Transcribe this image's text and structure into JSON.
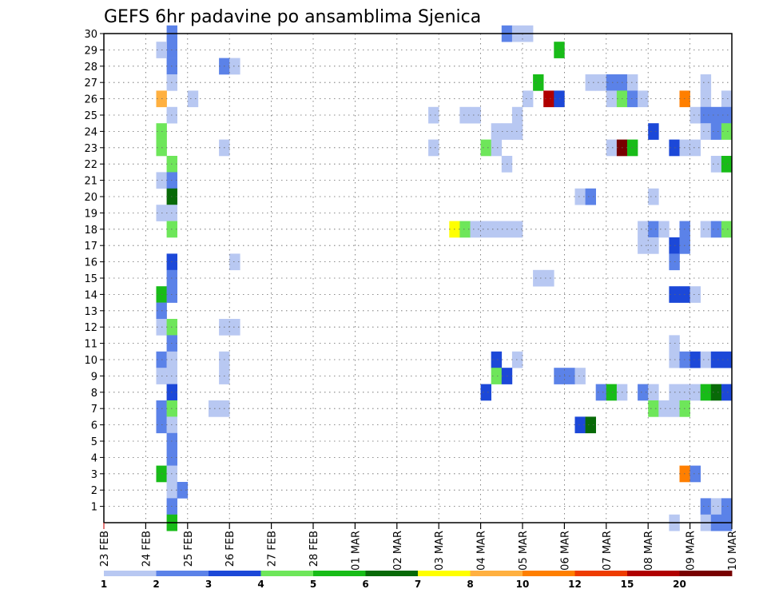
{
  "chart_data": {
    "type": "heatmap",
    "title": "GEFS 6hr padavine po ansamblima Sjenica",
    "xlabel": "",
    "ylabel": "",
    "x_ticks": [
      "23 FEB",
      "24 FEB",
      "25 FEB",
      "26 FEB",
      "27 FEB",
      "28 FEB",
      "01 MAR",
      "02 MAR",
      "03 MAR",
      "04 MAR",
      "05 MAR",
      "06 MAR",
      "07 MAR",
      "08 MAR",
      "09 MAR",
      "10 MAR"
    ],
    "y_ticks": [
      1,
      2,
      3,
      4,
      5,
      6,
      7,
      8,
      9,
      10,
      11,
      12,
      13,
      14,
      15,
      16,
      17,
      18,
      19,
      20,
      21,
      22,
      23,
      24,
      25,
      26,
      27,
      28,
      29,
      30
    ],
    "x_range": [
      0,
      60
    ],
    "y_range": [
      0,
      30
    ],
    "grid": true,
    "colorbar": {
      "levels": [
        "1",
        "2",
        "3",
        "4",
        "5",
        "6",
        "7",
        "8",
        "10",
        "12",
        "15",
        "20"
      ],
      "colors": [
        "#b8c8f2",
        "#5b82e8",
        "#1c48d8",
        "#6ee65a",
        "#18bc18",
        "#086a08",
        "#ffff00",
        "#ffb040",
        "#ff7f00",
        "#ee3c00",
        "#b00000",
        "#780000"
      ]
    },
    "cells": [
      {
        "t": 6.5,
        "m": 30,
        "c": 2
      },
      {
        "t": 6.5,
        "m": 29,
        "c": 2
      },
      {
        "t": 5.5,
        "m": 29,
        "c": 1
      },
      {
        "t": 6.5,
        "m": 28,
        "c": 2
      },
      {
        "t": 6.5,
        "m": 27,
        "c": 1
      },
      {
        "t": 5.5,
        "m": 26,
        "c": 8
      },
      {
        "t": 8.5,
        "m": 26,
        "c": 1
      },
      {
        "t": 6.5,
        "m": 25,
        "c": 1
      },
      {
        "t": 5.5,
        "m": 24,
        "c": 4
      },
      {
        "t": 5.5,
        "m": 23,
        "c": 4
      },
      {
        "t": 6.5,
        "m": 22,
        "c": 4
      },
      {
        "t": 5.5,
        "m": 21,
        "c": 1
      },
      {
        "t": 6.5,
        "m": 21,
        "c": 2
      },
      {
        "t": 6.5,
        "m": 20,
        "c": 6
      },
      {
        "t": 5.5,
        "m": 19,
        "c": 1
      },
      {
        "t": 6.5,
        "m": 19,
        "c": 1
      },
      {
        "t": 6.5,
        "m": 18,
        "c": 4
      },
      {
        "t": 6.5,
        "m": 16,
        "c": 3
      },
      {
        "t": 6.5,
        "m": 15,
        "c": 2
      },
      {
        "t": 5.5,
        "m": 14,
        "c": 5
      },
      {
        "t": 6.5,
        "m": 14,
        "c": 2
      },
      {
        "t": 5.5,
        "m": 13,
        "c": 2
      },
      {
        "t": 5.5,
        "m": 12,
        "c": 1
      },
      {
        "t": 6.5,
        "m": 12,
        "c": 4
      },
      {
        "t": 6.5,
        "m": 11,
        "c": 2
      },
      {
        "t": 5.5,
        "m": 10,
        "c": 2
      },
      {
        "t": 6.5,
        "m": 10,
        "c": 1
      },
      {
        "t": 5.5,
        "m": 9,
        "c": 1
      },
      {
        "t": 6.5,
        "m": 9,
        "c": 1
      },
      {
        "t": 6.5,
        "m": 8,
        "c": 3
      },
      {
        "t": 5.5,
        "m": 7,
        "c": 2
      },
      {
        "t": 6.5,
        "m": 7,
        "c": 4
      },
      {
        "t": 5.5,
        "m": 6,
        "c": 2
      },
      {
        "t": 6.5,
        "m": 6,
        "c": 1
      },
      {
        "t": 6.5,
        "m": 5,
        "c": 2
      },
      {
        "t": 6.5,
        "m": 4,
        "c": 2
      },
      {
        "t": 5.5,
        "m": 3,
        "c": 5
      },
      {
        "t": 6.5,
        "m": 3,
        "c": 1
      },
      {
        "t": 6.5,
        "m": 2,
        "c": 1
      },
      {
        "t": 7.5,
        "m": 2,
        "c": 2
      },
      {
        "t": 6.5,
        "m": 1,
        "c": 2
      },
      {
        "t": 6.5,
        "m": 0,
        "c": 5
      },
      {
        "t": 11.5,
        "m": 28,
        "c": 2
      },
      {
        "t": 12.5,
        "m": 28,
        "c": 1
      },
      {
        "t": 11.5,
        "m": 23,
        "c": 1
      },
      {
        "t": 12.5,
        "m": 16,
        "c": 1
      },
      {
        "t": 11.5,
        "m": 12,
        "c": 1
      },
      {
        "t": 12.5,
        "m": 12,
        "c": 1
      },
      {
        "t": 11.5,
        "m": 10,
        "c": 1
      },
      {
        "t": 11.5,
        "m": 9,
        "c": 1
      },
      {
        "t": 10.5,
        "m": 7,
        "c": 1
      },
      {
        "t": 11.5,
        "m": 7,
        "c": 1
      },
      {
        "t": 31.5,
        "m": 25,
        "c": 1
      },
      {
        "t": 34.5,
        "m": 25,
        "c": 1
      },
      {
        "t": 35.5,
        "m": 25,
        "c": 1
      },
      {
        "t": 31.5,
        "m": 23,
        "c": 1
      },
      {
        "t": 33.5,
        "m": 18,
        "c": 7
      },
      {
        "t": 34.5,
        "m": 18,
        "c": 4
      },
      {
        "t": 35.5,
        "m": 18,
        "c": 1
      },
      {
        "t": 36.5,
        "m": 18,
        "c": 1
      },
      {
        "t": 37.5,
        "m": 18,
        "c": 1
      },
      {
        "t": 38.5,
        "m": 18,
        "c": 1
      },
      {
        "t": 39.5,
        "m": 18,
        "c": 1
      },
      {
        "t": 36.5,
        "m": 23,
        "c": 4
      },
      {
        "t": 37.5,
        "m": 23,
        "c": 1
      },
      {
        "t": 37.5,
        "m": 24,
        "c": 1
      },
      {
        "t": 38.5,
        "m": 24,
        "c": 1
      },
      {
        "t": 39.5,
        "m": 24,
        "c": 1
      },
      {
        "t": 39.5,
        "m": 25,
        "c": 1
      },
      {
        "t": 38.5,
        "m": 22,
        "c": 1
      },
      {
        "t": 37.5,
        "m": 10,
        "c": 3
      },
      {
        "t": 39.5,
        "m": 10,
        "c": 1
      },
      {
        "t": 37.5,
        "m": 9,
        "c": 4
      },
      {
        "t": 38.5,
        "m": 9,
        "c": 3
      },
      {
        "t": 36.5,
        "m": 8,
        "c": 3
      },
      {
        "t": 38.5,
        "m": 30,
        "c": 2
      },
      {
        "t": 39.5,
        "m": 30,
        "c": 1
      },
      {
        "t": 40.5,
        "m": 30,
        "c": 1
      },
      {
        "t": 43.5,
        "m": 29,
        "c": 5
      },
      {
        "t": 41.5,
        "m": 27,
        "c": 5
      },
      {
        "t": 40.5,
        "m": 26,
        "c": 1
      },
      {
        "t": 42.5,
        "m": 26,
        "c": 11
      },
      {
        "t": 43.5,
        "m": 26,
        "c": 3
      },
      {
        "t": 41.5,
        "m": 15,
        "c": 1
      },
      {
        "t": 42.5,
        "m": 15,
        "c": 1
      },
      {
        "t": 43.5,
        "m": 9,
        "c": 2
      },
      {
        "t": 44.5,
        "m": 9,
        "c": 2
      },
      {
        "t": 45.5,
        "m": 9,
        "c": 1
      },
      {
        "t": 45.5,
        "m": 6,
        "c": 3
      },
      {
        "t": 46.5,
        "m": 6,
        "c": 6
      },
      {
        "t": 45.5,
        "m": 20,
        "c": 1
      },
      {
        "t": 46.5,
        "m": 20,
        "c": 2
      },
      {
        "t": 46.5,
        "m": 27,
        "c": 1
      },
      {
        "t": 47.5,
        "m": 27,
        "c": 1
      },
      {
        "t": 48.5,
        "m": 27,
        "c": 2
      },
      {
        "t": 49.5,
        "m": 27,
        "c": 2
      },
      {
        "t": 50.5,
        "m": 27,
        "c": 1
      },
      {
        "t": 48.5,
        "m": 26,
        "c": 1
      },
      {
        "t": 49.5,
        "m": 26,
        "c": 4
      },
      {
        "t": 50.5,
        "m": 26,
        "c": 2
      },
      {
        "t": 51.5,
        "m": 26,
        "c": 1
      },
      {
        "t": 52.5,
        "m": 24,
        "c": 3
      },
      {
        "t": 48.5,
        "m": 23,
        "c": 1
      },
      {
        "t": 49.5,
        "m": 23,
        "c": 12
      },
      {
        "t": 50.5,
        "m": 23,
        "c": 5
      },
      {
        "t": 54.5,
        "m": 23,
        "c": 3
      },
      {
        "t": 55.5,
        "m": 23,
        "c": 1
      },
      {
        "t": 56.5,
        "m": 23,
        "c": 1
      },
      {
        "t": 52.5,
        "m": 20,
        "c": 1
      },
      {
        "t": 51.5,
        "m": 18,
        "c": 1
      },
      {
        "t": 52.5,
        "m": 18,
        "c": 2
      },
      {
        "t": 53.5,
        "m": 18,
        "c": 1
      },
      {
        "t": 55.5,
        "m": 18,
        "c": 2
      },
      {
        "t": 57.5,
        "m": 18,
        "c": 1
      },
      {
        "t": 58.5,
        "m": 18,
        "c": 2
      },
      {
        "t": 59.5,
        "m": 18,
        "c": 4
      },
      {
        "t": 51.5,
        "m": 17,
        "c": 1
      },
      {
        "t": 52.5,
        "m": 17,
        "c": 1
      },
      {
        "t": 54.5,
        "m": 17,
        "c": 3
      },
      {
        "t": 55.5,
        "m": 17,
        "c": 2
      },
      {
        "t": 54.5,
        "m": 16,
        "c": 2
      },
      {
        "t": 54.5,
        "m": 14,
        "c": 3
      },
      {
        "t": 55.5,
        "m": 14,
        "c": 3
      },
      {
        "t": 56.5,
        "m": 14,
        "c": 1
      },
      {
        "t": 54.5,
        "m": 11,
        "c": 1
      },
      {
        "t": 54.5,
        "m": 10,
        "c": 1
      },
      {
        "t": 55.5,
        "m": 10,
        "c": 2
      },
      {
        "t": 56.5,
        "m": 10,
        "c": 3
      },
      {
        "t": 57.5,
        "m": 10,
        "c": 1
      },
      {
        "t": 58.5,
        "m": 10,
        "c": 3
      },
      {
        "t": 59.5,
        "m": 10,
        "c": 3
      },
      {
        "t": 47.5,
        "m": 8,
        "c": 2
      },
      {
        "t": 48.5,
        "m": 8,
        "c": 5
      },
      {
        "t": 49.5,
        "m": 8,
        "c": 1
      },
      {
        "t": 51.5,
        "m": 8,
        "c": 2
      },
      {
        "t": 52.5,
        "m": 8,
        "c": 1
      },
      {
        "t": 54.5,
        "m": 8,
        "c": 1
      },
      {
        "t": 55.5,
        "m": 8,
        "c": 1
      },
      {
        "t": 56.5,
        "m": 8,
        "c": 1
      },
      {
        "t": 57.5,
        "m": 8,
        "c": 5
      },
      {
        "t": 58.5,
        "m": 8,
        "c": 6
      },
      {
        "t": 59.5,
        "m": 8,
        "c": 3
      },
      {
        "t": 52.5,
        "m": 7,
        "c": 4
      },
      {
        "t": 53.5,
        "m": 7,
        "c": 1
      },
      {
        "t": 54.5,
        "m": 7,
        "c": 1
      },
      {
        "t": 55.5,
        "m": 7,
        "c": 4
      },
      {
        "t": 55.5,
        "m": 3,
        "c": 9
      },
      {
        "t": 56.5,
        "m": 3,
        "c": 2
      },
      {
        "t": 57.5,
        "m": 1,
        "c": 2
      },
      {
        "t": 58.5,
        "m": 1,
        "c": 1
      },
      {
        "t": 59.5,
        "m": 1,
        "c": 2
      },
      {
        "t": 54.5,
        "m": 0,
        "c": 1
      },
      {
        "t": 57.5,
        "m": 0,
        "c": 1
      },
      {
        "t": 58.5,
        "m": 0,
        "c": 2
      },
      {
        "t": 59.5,
        "m": 0,
        "c": 2
      },
      {
        "t": 57.5,
        "m": 27,
        "c": 1
      },
      {
        "t": 55.5,
        "m": 26,
        "c": 9
      },
      {
        "t": 57.5,
        "m": 26,
        "c": 1
      },
      {
        "t": 59.5,
        "m": 26,
        "c": 1
      },
      {
        "t": 56.5,
        "m": 25,
        "c": 1
      },
      {
        "t": 57.5,
        "m": 25,
        "c": 2
      },
      {
        "t": 58.5,
        "m": 25,
        "c": 2
      },
      {
        "t": 59.5,
        "m": 25,
        "c": 2
      },
      {
        "t": 57.5,
        "m": 24,
        "c": 1
      },
      {
        "t": 58.5,
        "m": 24,
        "c": 2
      },
      {
        "t": 59.5,
        "m": 24,
        "c": 4
      },
      {
        "t": 58.5,
        "m": 22,
        "c": 1
      },
      {
        "t": 59.5,
        "m": 22,
        "c": 5
      }
    ]
  }
}
